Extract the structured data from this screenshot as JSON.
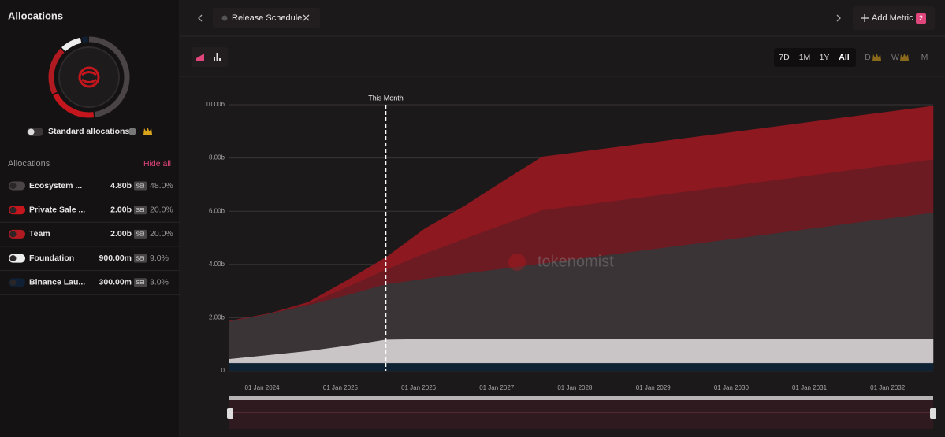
{
  "sidebar": {
    "title": "Allocations",
    "standard_toggle": "Standard allocations",
    "section_label": "Allocations",
    "hide_all": "Hide all",
    "rows": [
      {
        "name": "Ecosystem ...",
        "amount": "4.80b",
        "unit": "SEI",
        "percent": {
          "value": 48,
          "label": "48.0%"
        },
        "color": "#4a4447"
      },
      {
        "name": "Private Sale ...",
        "amount": "2.00b",
        "unit": "SEI",
        "percent": {
          "value": 20,
          "label": "20.0%"
        },
        "color": "#c4161c"
      },
      {
        "name": "Team",
        "amount": "2.00b",
        "unit": "SEI",
        "percent": {
          "value": 20,
          "label": "20.0%"
        },
        "color": "#b01a20"
      },
      {
        "name": "Foundation",
        "amount": "900.00m",
        "unit": "SEI",
        "percent": {
          "value": 9,
          "label": "9.0%"
        },
        "color": "#eeeeee"
      },
      {
        "name": "Binance Lau...",
        "amount": "300.00m",
        "unit": "SEI",
        "percent": {
          "value": 3,
          "label": "3.0%"
        },
        "color": "#0f2035"
      }
    ]
  },
  "topbar": {
    "tab": "Release Schedule",
    "add_metric": "Add Metric",
    "metric_count": 2
  },
  "toolbar": {
    "ranges": [
      "7D",
      "1M",
      "1Y",
      "All"
    ],
    "intervals": [
      "D",
      "W",
      "M"
    ]
  },
  "chart_data": {
    "type": "area",
    "stacked": true,
    "x": [
      "2023-08-01",
      "2024-02-01",
      "2024-08-01",
      "2025-02-01",
      "2025-08-01",
      "2026-02-01",
      "2026-08-01",
      "2027-02-01",
      "2027-08-01",
      "2028-08-01",
      "2029-08-01",
      "2030-08-01",
      "2031-08-01",
      "2032-08-01"
    ],
    "series": [
      {
        "color": "#0e2233",
        "values": [
          0.3,
          0.3,
          0.3,
          0.3,
          0.3,
          0.3,
          0.3,
          0.3,
          0.3,
          0.3,
          0.3,
          0.3,
          0.3,
          0.3
        ]
      },
      {
        "color": "#c9c5c7",
        "values": [
          0.15,
          0.3,
          0.45,
          0.65,
          0.88,
          0.9,
          0.9,
          0.9,
          0.9,
          0.9,
          0.9,
          0.9,
          0.9,
          0.9
        ]
      },
      {
        "color": "#3b3437",
        "values": [
          1.42,
          1.55,
          1.72,
          1.9,
          2.08,
          2.27,
          2.46,
          2.65,
          2.84,
          3.22,
          3.6,
          3.98,
          4.37,
          4.75
        ]
      },
      {
        "color": "#6c1b22",
        "values": [
          0,
          0,
          0.05,
          0.3,
          0.55,
          0.95,
          1.3,
          1.65,
          2,
          2,
          2,
          2,
          2,
          2
        ]
      },
      {
        "color": "#8d1820",
        "values": [
          0,
          0,
          0.05,
          0.25,
          0.45,
          0.93,
          1.22,
          1.63,
          2,
          2,
          2,
          2,
          2,
          2
        ]
      }
    ],
    "xlim": [
      "2023-08-01",
      "2032-08-01"
    ],
    "xticks": [
      {
        "value": "2024-01-01",
        "label": "01 Jan 2024"
      },
      {
        "value": "2025-01-01",
        "label": "01 Jan 2025"
      },
      {
        "value": "2026-01-01",
        "label": "01 Jan 2026"
      },
      {
        "value": "2027-01-01",
        "label": "01 Jan 2027"
      },
      {
        "value": "2028-01-01",
        "label": "01 Jan 2028"
      },
      {
        "value": "2029-01-01",
        "label": "01 Jan 2029"
      },
      {
        "value": "2030-01-01",
        "label": "01 Jan 2030"
      },
      {
        "value": "2031-01-01",
        "label": "01 Jan 2031"
      },
      {
        "value": "2032-01-01",
        "label": "01 Jan 2032"
      }
    ],
    "ylim": [
      0,
      10
    ],
    "yticks": [
      0,
      {
        "value": 2,
        "label": "2.00b"
      },
      {
        "value": 4,
        "label": "4.00b"
      },
      {
        "value": 6,
        "label": "6.00b"
      },
      {
        "value": 8,
        "label": "8.00b"
      },
      {
        "value": 10,
        "label": "10.00b"
      }
    ],
    "grid": true,
    "annotation": {
      "label": "This Month",
      "x": "2025-08-01"
    },
    "watermark": "tokenomist"
  }
}
